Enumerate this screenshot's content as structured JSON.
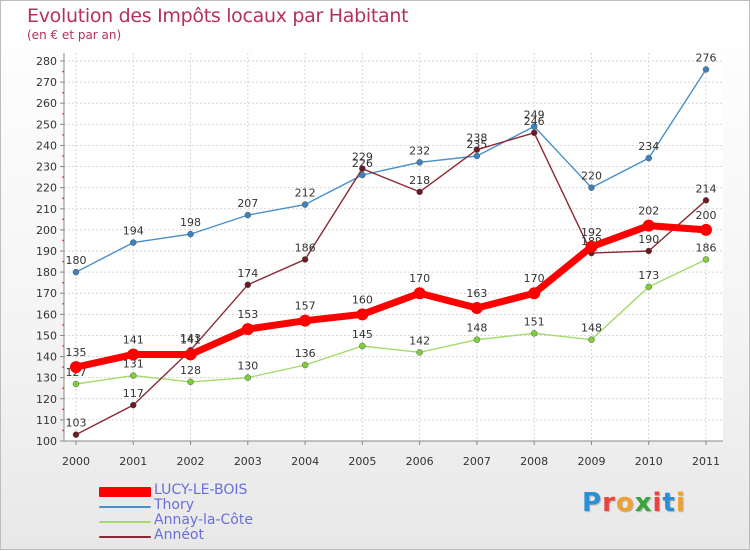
{
  "header": {
    "title": "Evolution des Impôts locaux par Habitant",
    "subtitle": "(en € et par an)"
  },
  "logo": {
    "letters": [
      "P",
      "r",
      "o",
      "x",
      "i",
      "t",
      "i"
    ],
    "colors": [
      "#2b8fd6",
      "#e8453c",
      "#f0a030",
      "#3aa53a",
      "#e8453c",
      "#2b8fd6",
      "#f0a030"
    ]
  },
  "chart_data": {
    "type": "line",
    "title": "Evolution des Impôts locaux par Habitant",
    "subtitle": "(en € et par an)",
    "xlabel": "",
    "ylabel": "",
    "x": [
      "2000",
      "2001",
      "2002",
      "2003",
      "2004",
      "2005",
      "2006",
      "2007",
      "2008",
      "2009",
      "2010",
      "2011"
    ],
    "ylim": [
      100,
      280
    ],
    "yticks": [
      100,
      110,
      120,
      130,
      140,
      150,
      160,
      170,
      180,
      190,
      200,
      210,
      220,
      230,
      240,
      250,
      260,
      270,
      280
    ],
    "grid": true,
    "legend_position": "bottom-left",
    "series": [
      {
        "name": "Thory",
        "color": "#4a90c8",
        "marker": "#3a82c0",
        "values": [
          180,
          194,
          198,
          207,
          212,
          226,
          232,
          235,
          249,
          220,
          234,
          276
        ],
        "labels": [
          "180",
          "194",
          "198",
          "207",
          "212",
          "226",
          "232",
          "235",
          "249",
          "220",
          "234",
          "276"
        ]
      },
      {
        "name": "Annay-la-Côte",
        "color": "#a6d96a",
        "marker": "#7fcf3a",
        "values": [
          127,
          131,
          128,
          130,
          136,
          145,
          142,
          148,
          151,
          148,
          173,
          186
        ],
        "labels": [
          "127",
          "131",
          "128",
          "130",
          "136",
          "145",
          "142",
          "148",
          "151",
          "148",
          "173",
          "186"
        ]
      },
      {
        "name": "Annéot",
        "color": "#8a2a35",
        "marker": "#6a1a22",
        "values": [
          103,
          117,
          143,
          174,
          186,
          229,
          218,
          238,
          246,
          189,
          190,
          214
        ],
        "labels": [
          "103",
          "117",
          "143",
          "174",
          "186",
          "229",
          "218",
          "238",
          "246",
          "189",
          "190",
          "214"
        ]
      },
      {
        "name": "LUCY-LE-BOIS",
        "color": "#ff0000",
        "marker": "#ff0000",
        "values": [
          135,
          141,
          141,
          153,
          157,
          160,
          170,
          163,
          170,
          192,
          202,
          200
        ],
        "labels": [
          "135",
          "141",
          "141",
          "153",
          "157",
          "160",
          "170",
          "163",
          "170",
          "192",
          "202",
          "200"
        ]
      }
    ],
    "legend": [
      {
        "name": "LUCY-LE-BOIS",
        "color": "#ff0000"
      },
      {
        "name": "Thory",
        "color": "#4a90c8"
      },
      {
        "name": "Annay-la-Côte",
        "color": "#a6d96a"
      },
      {
        "name": "Annéot",
        "color": "#8a2a35"
      }
    ]
  }
}
